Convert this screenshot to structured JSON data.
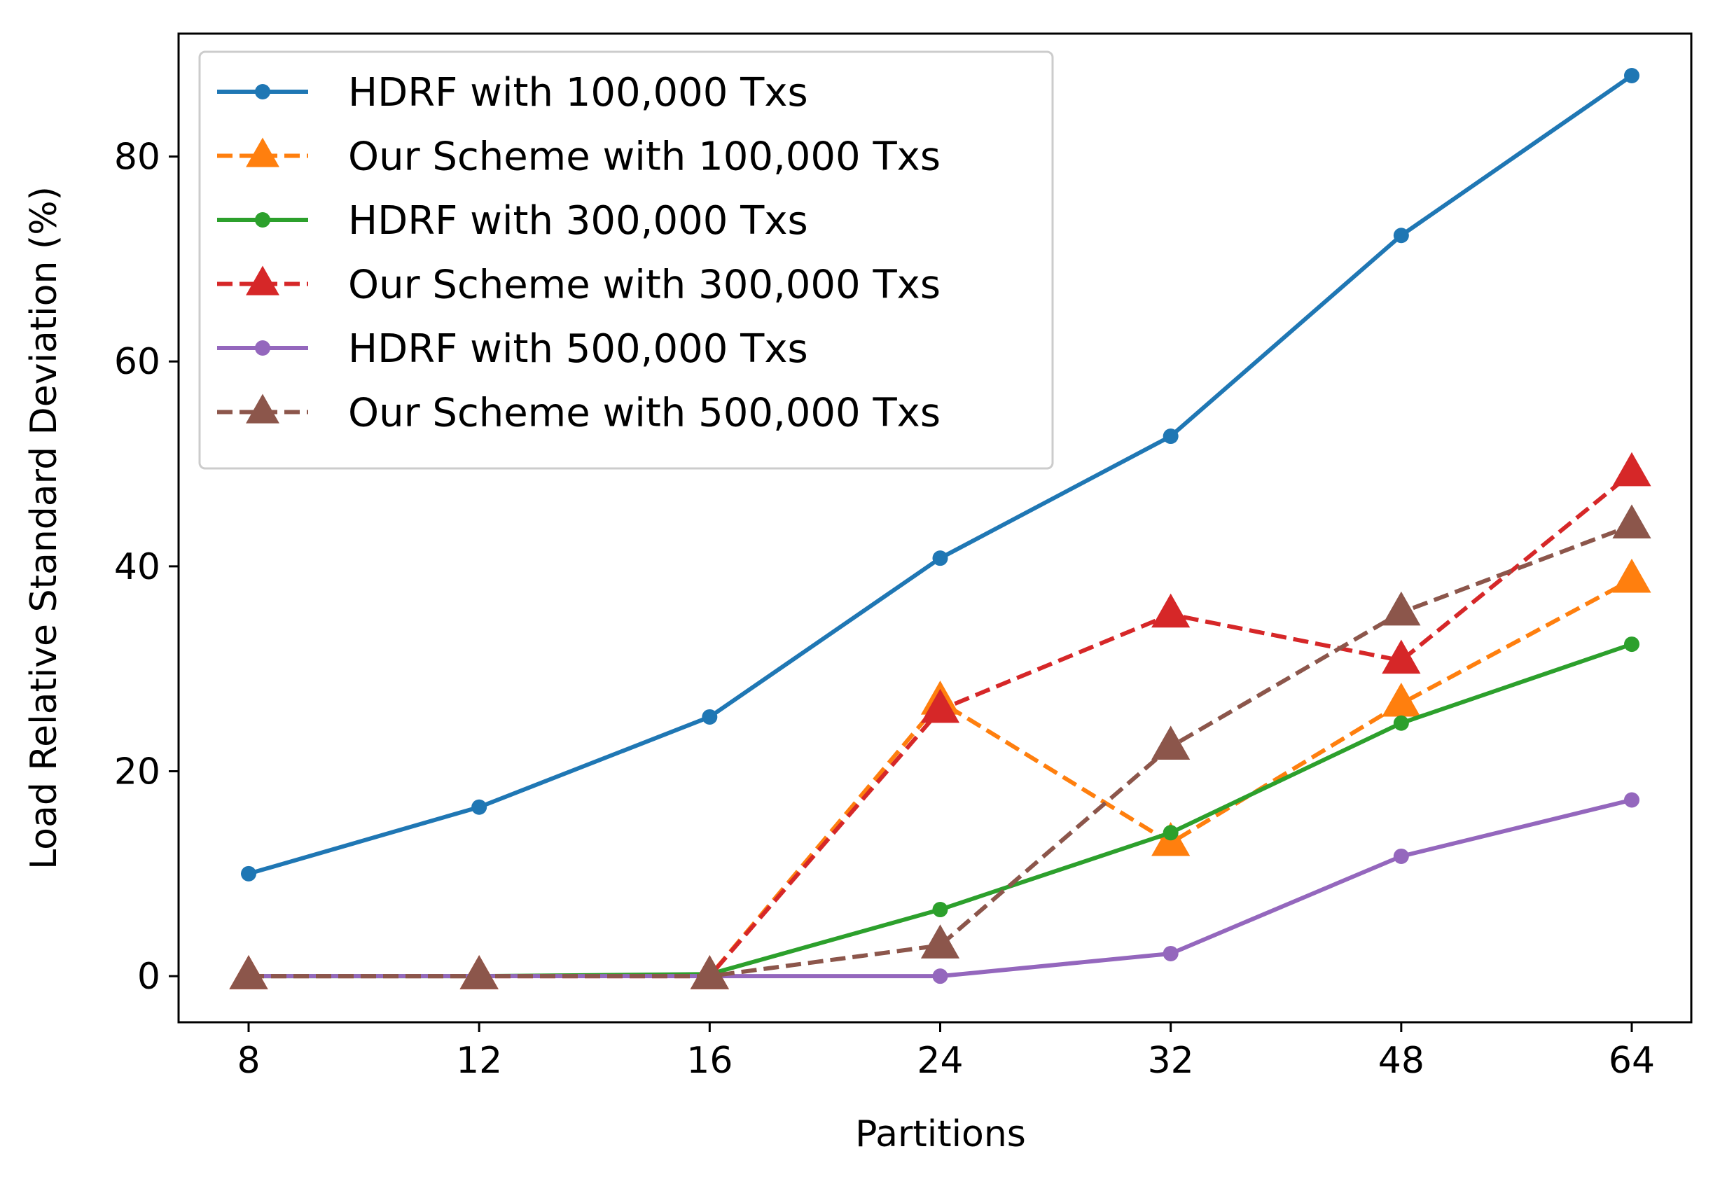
{
  "chart_data": {
    "type": "line",
    "title": "",
    "xlabel": "Partitions",
    "ylabel": "Load Relative Standard Deviation (%)",
    "categories": [
      "8",
      "12",
      "16",
      "24",
      "32",
      "48",
      "64"
    ],
    "ylim": [
      -4.5,
      92
    ],
    "yticks": [
      0,
      20,
      40,
      60,
      80
    ],
    "ytick_labels": [
      "0",
      "20",
      "40",
      "60",
      "80"
    ],
    "grid": false,
    "legend_position": "top-left",
    "series": [
      {
        "name": "HDRF with 100,000 Txs",
        "values": [
          10.0,
          16.5,
          25.3,
          40.8,
          52.7,
          72.3,
          87.9
        ],
        "color": "#1f77b4",
        "linestyle": "solid",
        "marker": "circle"
      },
      {
        "name": "Our Scheme with 100,000 Txs",
        "values": [
          0,
          0,
          0,
          26.8,
          13.0,
          26.6,
          38.7
        ],
        "color": "#ff7f0e",
        "linestyle": "dashed",
        "marker": "triangle"
      },
      {
        "name": "HDRF with 300,000 Txs",
        "values": [
          0,
          0,
          0.2,
          6.5,
          14.0,
          24.7,
          32.4
        ],
        "color": "#2ca02c",
        "linestyle": "solid",
        "marker": "circle"
      },
      {
        "name": "Our Scheme with 300,000 Txs",
        "values": [
          0,
          0,
          0,
          26.0,
          35.3,
          30.8,
          49.1
        ],
        "color": "#d62728",
        "linestyle": "dashed",
        "marker": "triangle"
      },
      {
        "name": "HDRF with 500,000 Txs",
        "values": [
          0,
          0,
          0,
          0,
          2.2,
          11.7,
          17.2
        ],
        "color": "#9467bd",
        "linestyle": "solid",
        "marker": "circle"
      },
      {
        "name": "Our Scheme with 500,000 Txs",
        "values": [
          0,
          0,
          0,
          3.0,
          22.4,
          35.5,
          44.0
        ],
        "color": "#8c564b",
        "linestyle": "dashed",
        "marker": "triangle"
      }
    ]
  }
}
